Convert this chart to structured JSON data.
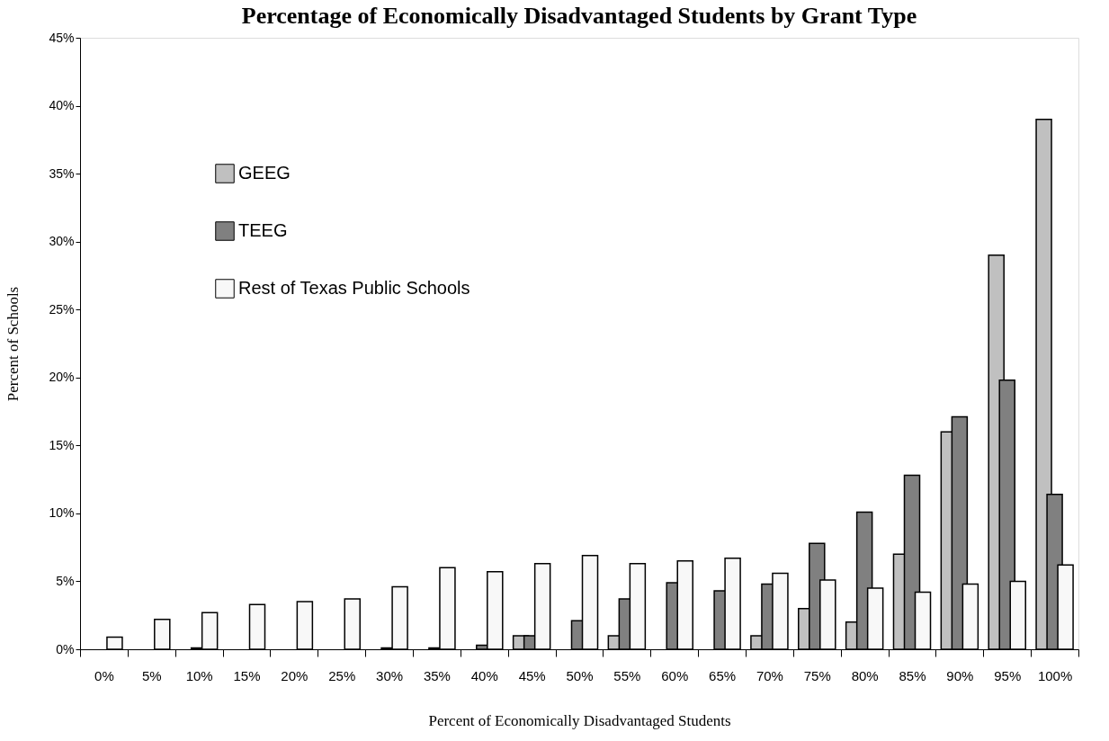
{
  "chart_data": {
    "type": "bar",
    "title": "Percentage of Economically Disadvantaged Students by Grant Type",
    "xlabel": "Percent of Economically Disadvantaged Students",
    "ylabel": "Percent of Schools",
    "categories": [
      "0%",
      "5%",
      "10%",
      "15%",
      "20%",
      "25%",
      "30%",
      "35%",
      "40%",
      "45%",
      "50%",
      "55%",
      "60%",
      "65%",
      "70%",
      "75%",
      "80%",
      "85%",
      "90%",
      "95%",
      "100%"
    ],
    "series": [
      {
        "name": "GEEG",
        "color": "#c0c0c0",
        "values": [
          null,
          null,
          null,
          null,
          null,
          null,
          null,
          null,
          null,
          1.0,
          null,
          1.0,
          null,
          null,
          1.0,
          3.0,
          2.0,
          7.0,
          16.0,
          29.0,
          39.0
        ]
      },
      {
        "name": "TEEG",
        "color": "#808080",
        "values": [
          null,
          null,
          0.1,
          null,
          null,
          null,
          0.1,
          0.1,
          0.3,
          1.0,
          2.1,
          3.7,
          4.9,
          4.3,
          4.8,
          7.8,
          10.1,
          12.8,
          17.1,
          19.8,
          11.4
        ]
      },
      {
        "name": "Rest of Texas Public Schools",
        "color": "#f8f8f8",
        "values": [
          0.9,
          2.2,
          2.7,
          3.3,
          3.5,
          3.7,
          4.6,
          6.0,
          5.7,
          6.3,
          6.9,
          6.3,
          6.5,
          6.7,
          5.6,
          5.1,
          4.5,
          4.2,
          4.8,
          5.0,
          6.2
        ]
      }
    ],
    "ylim": [
      0,
      45
    ],
    "yticks": [
      {
        "value": 0,
        "label": "0%"
      },
      {
        "value": 5,
        "label": "5%"
      },
      {
        "value": 10,
        "label": "10%"
      },
      {
        "value": 15,
        "label": "15%"
      },
      {
        "value": 20,
        "label": "20%"
      },
      {
        "value": 25,
        "label": "25%"
      },
      {
        "value": 30,
        "label": "30%"
      },
      {
        "value": 35,
        "label": "35%"
      },
      {
        "value": 40,
        "label": "40%"
      },
      {
        "value": 45,
        "label": "45%"
      }
    ],
    "grid": false,
    "legend": "top left"
  }
}
